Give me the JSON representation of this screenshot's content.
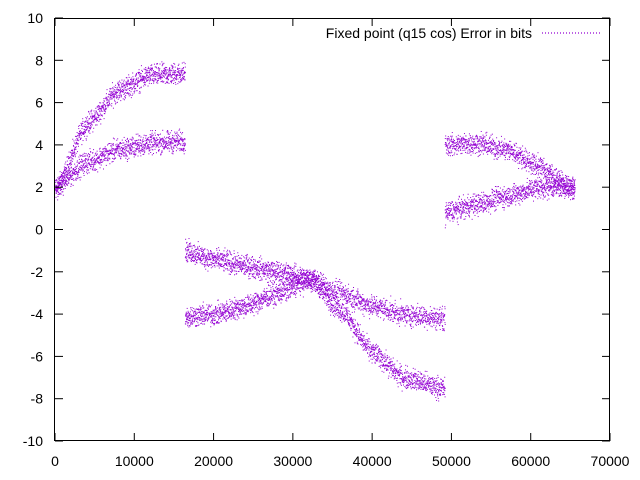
{
  "chart_data": {
    "type": "scatter",
    "title": "",
    "xlabel": "",
    "ylabel": "",
    "xlim": [
      0,
      70000
    ],
    "ylim": [
      -10,
      10
    ],
    "xticks": [
      "0",
      "10000",
      "20000",
      "30000",
      "40000",
      "50000",
      "60000",
      "70000"
    ],
    "yticks": [
      "10",
      "8",
      "6",
      "4",
      "2",
      "0",
      "-2",
      "-4",
      "-6",
      "-8",
      "-10"
    ],
    "grid": false,
    "legend_position": "top-right",
    "series": [
      {
        "name": "Fixed point (q15 cos) Error in bits",
        "color": "#9400d3",
        "noise_amplitude": 0.45,
        "bands": [
          {
            "x": [
              0,
              4000,
              8000,
              12000,
              16384
            ],
            "y": [
              1.9,
              5.0,
              6.6,
              7.3,
              7.4
            ]
          },
          {
            "x": [
              0,
              4000,
              8000,
              12000,
              16384
            ],
            "y": [
              2.0,
              3.2,
              3.8,
              4.1,
              4.2
            ]
          },
          {
            "x": [
              16384,
              20000,
              24000,
              28000,
              32000
            ],
            "y": [
              -1.0,
              -1.4,
              -1.7,
              -2.0,
              -2.3
            ]
          },
          {
            "x": [
              16384,
              20000,
              24000,
              28000,
              32000
            ],
            "y": [
              -4.1,
              -4.0,
              -3.6,
              -3.0,
              -2.4
            ]
          },
          {
            "x": [
              32000,
              36000,
              40000,
              44000,
              49152
            ],
            "y": [
              -2.3,
              -3.0,
              -3.6,
              -4.0,
              -4.2
            ]
          },
          {
            "x": [
              32000,
              36000,
              40000,
              44000,
              49152
            ],
            "y": [
              -2.3,
              -3.8,
              -5.8,
              -7.0,
              -7.5
            ]
          },
          {
            "x": [
              49152,
              53000,
              57000,
              61000,
              65535
            ],
            "y": [
              4.0,
              4.1,
              3.8,
              3.0,
              1.8
            ]
          },
          {
            "x": [
              49152,
              53000,
              57000,
              61000,
              65535
            ],
            "y": [
              0.8,
              1.2,
              1.6,
              2.0,
              2.1
            ]
          }
        ]
      }
    ]
  }
}
